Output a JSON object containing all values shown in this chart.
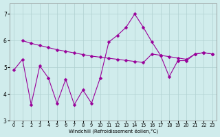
{
  "x_spiky": [
    0,
    1,
    2,
    3,
    4,
    5,
    6,
    7,
    8,
    9,
    10,
    11,
    12,
    13,
    14,
    15,
    16,
    17,
    18,
    19,
    20,
    21,
    22,
    23
  ],
  "y_spiky": [
    4.9,
    5.3,
    3.6,
    5.05,
    4.6,
    3.65,
    4.55,
    3.6,
    4.15,
    3.65,
    4.6,
    5.95,
    6.2,
    6.5,
    7.0,
    6.5,
    5.95,
    5.45,
    4.65,
    5.25,
    5.25,
    5.5,
    5.55,
    5.5
  ],
  "x_smooth": [
    1,
    2,
    3,
    4,
    5,
    6,
    7,
    8,
    9,
    10,
    11,
    12,
    13,
    14,
    15,
    16,
    17,
    18,
    19,
    20,
    21,
    22,
    23
  ],
  "y_smooth": [
    6.0,
    5.9,
    5.82,
    5.74,
    5.66,
    5.6,
    5.54,
    5.48,
    5.42,
    5.38,
    5.34,
    5.3,
    5.26,
    5.22,
    5.18,
    5.5,
    5.45,
    5.4,
    5.35,
    5.3,
    5.5,
    5.55,
    5.5
  ],
  "line_color": "#990099",
  "bg_color": "#d0ecec",
  "grid_color": "#b0d0d0",
  "xlabel": "Windchill (Refroidissement éolien,°C)",
  "ylim": [
    3.0,
    7.4
  ],
  "xlim": [
    -0.5,
    23.5
  ],
  "yticks": [
    3,
    4,
    5,
    6,
    7
  ],
  "xticks": [
    0,
    1,
    2,
    3,
    4,
    5,
    6,
    7,
    8,
    9,
    10,
    11,
    12,
    13,
    14,
    15,
    16,
    17,
    18,
    19,
    20,
    21,
    22,
    23
  ],
  "markersize": 2.5
}
